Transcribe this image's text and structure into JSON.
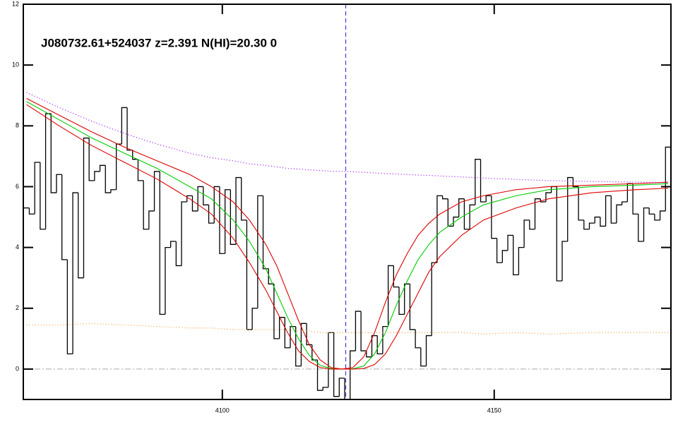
{
  "chart_data": {
    "type": "line",
    "annotation": "J080732.61+524037 z=2.391 N(HI)=20.30 0",
    "xlim": [
      4063.4,
      4182.5
    ],
    "ylim": [
      -1,
      12
    ],
    "xticks": [
      4100,
      4150
    ],
    "yticks": [
      0,
      2,
      4,
      6,
      8,
      10,
      12
    ],
    "hline": {
      "value": 0,
      "color": "#aaaaaa",
      "dash": "dashdot"
    },
    "vline": {
      "value": 4122.7,
      "color": "#2222cc",
      "dash": "dashed"
    },
    "x": [
      4064,
      4070,
      4076,
      4082,
      4088,
      4094,
      4098,
      4102,
      4105,
      4108,
      4110,
      4112,
      4114,
      4116,
      4118,
      4120,
      4122,
      4124,
      4126,
      4128,
      4130,
      4132,
      4134,
      4136,
      4138,
      4140,
      4144,
      4148,
      4154,
      4160,
      4168,
      4176,
      4182
    ],
    "series": [
      {
        "style": "step",
        "color": "#000000",
        "x": [
          4064,
          4065,
          4066,
          4067,
          4068,
          4069,
          4070,
          4071,
          4072,
          4073,
          4074,
          4075,
          4076,
          4077,
          4078,
          4079,
          4080,
          4081,
          4082,
          4083,
          4084,
          4085,
          4086,
          4087,
          4088,
          4089,
          4090,
          4091,
          4092,
          4093,
          4094,
          4095,
          4096,
          4097,
          4098,
          4099,
          4100,
          4101,
          4102,
          4103,
          4104,
          4105,
          4106,
          4107,
          4108,
          4109,
          4110,
          4111,
          4112,
          4113,
          4114,
          4115,
          4116,
          4117,
          4118,
          4119,
          4120,
          4121,
          4122,
          4123,
          4124,
          4125,
          4126,
          4127,
          4128,
          4129,
          4130,
          4131,
          4132,
          4133,
          4134,
          4135,
          4136,
          4137,
          4138,
          4139,
          4140,
          4141,
          4142,
          4143,
          4144,
          4145,
          4146,
          4147,
          4148,
          4149,
          4150,
          4151,
          4152,
          4153,
          4154,
          4155,
          4156,
          4157,
          4158,
          4159,
          4160,
          4161,
          4162,
          4163,
          4164,
          4165,
          4166,
          4167,
          4168,
          4169,
          4170,
          4171,
          4172,
          4173,
          4174,
          4175,
          4176,
          4177,
          4178,
          4179,
          4180,
          4181,
          4182
        ],
        "values": [
          5.3,
          5.1,
          6.8,
          4.6,
          8.4,
          5.8,
          6.4,
          3.6,
          0.5,
          5.8,
          3.0,
          7.6,
          6.2,
          6.5,
          6.7,
          5.8,
          5.9,
          7.4,
          8.6,
          7.2,
          6.9,
          6.2,
          4.6,
          5.2,
          6.5,
          1.8,
          4.0,
          4.2,
          3.4,
          5.5,
          5.7,
          5.2,
          6.0,
          5.4,
          4.8,
          6.0,
          3.8,
          5.9,
          4.1,
          6.3,
          4.9,
          1.3,
          2.0,
          5.7,
          3.3,
          2.8,
          1.0,
          1.7,
          0.7,
          1.4,
          0.1,
          1.5,
          0.8,
          0.3,
          -0.7,
          -0.6,
          1.2,
          -0.9,
          -0.3,
          -1.0,
          0.6,
          1.9,
          0.6,
          0.4,
          1.1,
          0.5,
          1.4,
          3.4,
          2.7,
          1.8,
          2.8,
          1.3,
          0.7,
          0.1,
          1.1,
          3.5,
          5.7,
          5.6,
          4.7,
          5.0,
          5.6,
          4.6,
          5.4,
          6.9,
          5.5,
          5.7,
          4.3,
          3.5,
          3.9,
          4.4,
          3.1,
          4.0,
          4.9,
          4.6,
          5.6,
          5.5,
          5.8,
          6.0,
          2.9,
          4.2,
          6.3,
          6.0,
          4.9,
          4.6,
          4.8,
          5.0,
          4.7,
          5.7,
          4.8,
          5.4,
          5.5,
          6.1,
          5.1,
          4.2,
          5.3,
          5.1,
          4.9,
          5.2,
          7.3
        ]
      },
      {
        "style": "solid",
        "color": "#00cc00",
        "values": [
          8.8,
          8.2,
          7.6,
          7.1,
          6.6,
          6.0,
          5.6,
          4.9,
          4.2,
          3.3,
          2.5,
          1.7,
          1.0,
          0.45,
          0.12,
          0.02,
          0.0,
          0.01,
          0.1,
          0.5,
          1.2,
          2.1,
          2.9,
          3.6,
          4.1,
          4.5,
          5.0,
          5.4,
          5.7,
          5.9,
          6.0,
          6.05,
          6.1
        ]
      },
      {
        "style": "solid",
        "color": "#dd0000",
        "values": [
          8.9,
          8.35,
          7.8,
          7.3,
          6.85,
          6.4,
          6.0,
          5.5,
          4.9,
          4.1,
          3.4,
          2.5,
          1.6,
          0.8,
          0.3,
          0.05,
          0.0,
          0.05,
          0.4,
          1.2,
          2.2,
          3.1,
          3.8,
          4.4,
          4.8,
          5.1,
          5.5,
          5.7,
          5.9,
          6.0,
          6.05,
          6.1,
          6.15
        ]
      },
      {
        "style": "solid",
        "color": "#dd0000",
        "values": [
          8.7,
          8.0,
          7.35,
          6.8,
          6.25,
          5.6,
          5.1,
          4.3,
          3.5,
          2.6,
          1.9,
          1.2,
          0.6,
          0.25,
          0.05,
          0.0,
          0.0,
          0.0,
          0.02,
          0.15,
          0.5,
          1.1,
          1.8,
          2.5,
          3.2,
          3.7,
          4.4,
          4.9,
          5.3,
          5.6,
          5.8,
          5.9,
          5.95
        ]
      },
      {
        "style": "dotted",
        "color": "#9900ff",
        "values": [
          9.1,
          8.6,
          8.15,
          7.75,
          7.4,
          7.1,
          6.95,
          6.85,
          6.75,
          6.7,
          6.65,
          6.6,
          6.58,
          6.55,
          6.53,
          6.51,
          6.5,
          6.49,
          6.47,
          6.45,
          6.43,
          6.42,
          6.4,
          6.38,
          6.37,
          6.35,
          6.32,
          6.28,
          6.24,
          6.2,
          6.17,
          6.15,
          6.13
        ]
      },
      {
        "style": "dotted",
        "color": "#ff9933",
        "values": [
          1.45,
          1.45,
          1.5,
          1.45,
          1.4,
          1.35,
          1.35,
          1.3,
          1.3,
          1.3,
          1.3,
          1.3,
          1.25,
          1.25,
          1.2,
          1.2,
          1.2,
          1.2,
          1.2,
          1.2,
          1.2,
          1.2,
          1.2,
          1.2,
          1.2,
          1.2,
          1.2,
          1.15,
          1.2,
          1.15,
          1.2,
          1.2,
          1.2
        ]
      }
    ]
  }
}
